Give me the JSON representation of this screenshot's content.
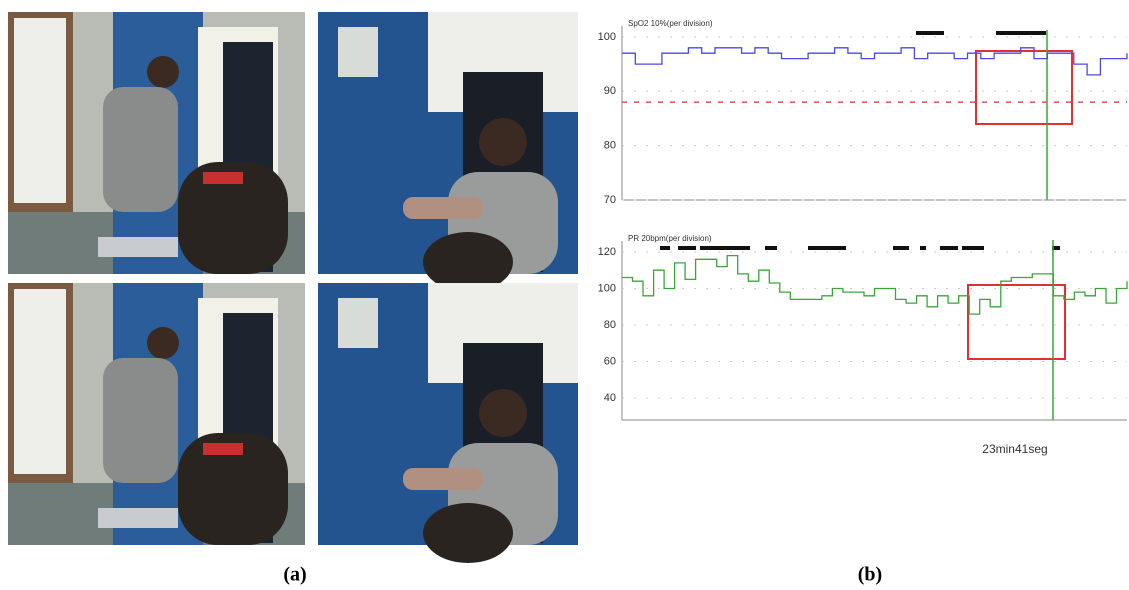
{
  "figure": {
    "captions": [
      "(a)",
      "(b)"
    ]
  },
  "chart_data": [
    {
      "type": "line",
      "label": "SpO2   10%(per division)",
      "color": "#4a4ae0",
      "values": [
        97,
        95,
        95,
        97,
        97,
        98,
        97,
        98,
        98,
        97,
        98,
        97,
        96,
        96,
        97,
        97,
        98,
        97,
        96,
        97,
        97,
        98,
        96,
        97,
        97,
        96,
        97,
        96,
        97,
        97,
        98,
        96,
        97,
        97,
        95,
        93,
        96,
        96,
        97
      ],
      "ylim": [
        70,
        102
      ],
      "yticks": [
        70,
        80,
        90,
        100
      ],
      "threshold": 88,
      "threshold_color": "#e05050"
    },
    {
      "type": "line",
      "label": "PR    20bpm(per division)",
      "color": "#3aa63a",
      "values": [
        106,
        104,
        96,
        110,
        100,
        114,
        105,
        116,
        116,
        112,
        118,
        108,
        104,
        110,
        103,
        98,
        94,
        94,
        94,
        96,
        100,
        98,
        98,
        96,
        100,
        100,
        94,
        92,
        96,
        90,
        96,
        92,
        96,
        86,
        94,
        90,
        104,
        106,
        106,
        108,
        108,
        96,
        94,
        98,
        96,
        100,
        92,
        100,
        104
      ],
      "ylim": [
        28,
        126
      ],
      "yticks": [
        40,
        60,
        80,
        100,
        120
      ],
      "annotation": "23min41seg"
    }
  ]
}
